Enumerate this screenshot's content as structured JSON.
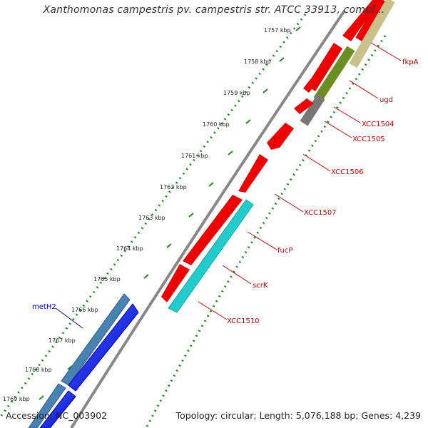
{
  "title": "Xanthomonas campestris pv. campestris str. ATCC 33913, compl...",
  "footer": {
    "accession": "Accession: NC_003902",
    "summary": "Topology: circular; Length: 5,076,188 bp; Genes: 4,239"
  },
  "ticks": [
    "1757 kbp",
    "1758 kbp",
    "1759 kbp",
    "1760 kbp",
    "1761 kbp",
    "1762 kbp",
    "1763 kbp",
    "1764 kbp",
    "1765 kbp",
    "1766 kbp",
    "1767 kbp",
    "1768 kbp",
    "1769 kbp"
  ],
  "gene_labels": [
    {
      "name": "fkpA",
      "color": "#cc0000"
    },
    {
      "name": "ugd",
      "color": "#cc0000"
    },
    {
      "name": "XCC1504",
      "color": "#cc0000"
    },
    {
      "name": "XCC1505",
      "color": "#cc0000"
    },
    {
      "name": "XCC1506",
      "color": "#cc0000"
    },
    {
      "name": "XCC1507",
      "color": "#cc0000"
    },
    {
      "name": "fucP",
      "color": "#cc0000"
    },
    {
      "name": "scrK",
      "color": "#cc0000"
    },
    {
      "name": "XCC1510",
      "color": "#cc0000"
    },
    {
      "name": "metH2",
      "color": "#0000cc"
    }
  ],
  "colors": {
    "forward_cds": "#ee0000",
    "outer_red": "#ee0000",
    "olive": "#6b8e23",
    "khaki": "#c8c28a",
    "gray_feature": "#777777",
    "cyan_feature": "#22cccc",
    "steelblue_feature": "#4682b4",
    "blue_feature": "#0000ee",
    "backbone": "#888888",
    "dotted_ring": "#228822",
    "tick_mark": "#228822"
  }
}
